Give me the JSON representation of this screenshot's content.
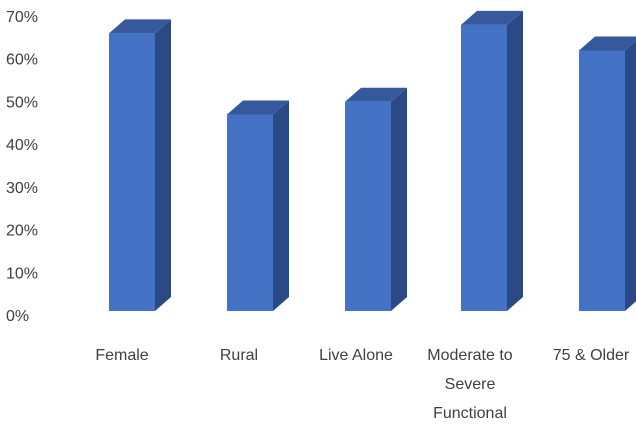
{
  "chart_data": {
    "type": "bar",
    "title": "",
    "xlabel": "",
    "ylabel": "",
    "categories": [
      "Female",
      "Rural",
      "Live Alone",
      "Moderate to Severe Functional",
      "75 & Older"
    ],
    "category_lines": [
      [
        "Female"
      ],
      [
        "Rural"
      ],
      [
        "Live Alone"
      ],
      [
        "Moderate to",
        "Severe",
        "Functional"
      ],
      [
        "75 & Older"
      ]
    ],
    "values": [
      65,
      46,
      49,
      67,
      61
    ],
    "ylim": [
      0,
      70
    ],
    "yticks": [
      "0%",
      "10%",
      "20%",
      "30%",
      "40%",
      "50%",
      "60%",
      "70%"
    ],
    "grid": false,
    "legend": "none",
    "style": "3d-column",
    "colors": {
      "front": "#4472C4",
      "side": "#2B4A85",
      "top": "#35599C",
      "text": "#404040"
    }
  }
}
